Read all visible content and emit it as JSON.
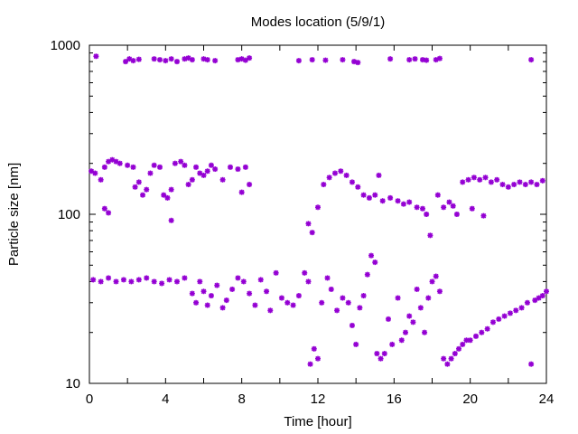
{
  "chart_data": {
    "type": "scatter",
    "title": "Modes location (5/9/1)",
    "xlabel": "Time [hour]",
    "ylabel": "Particle size [nm]",
    "xlim": [
      0,
      24
    ],
    "ylim": [
      10,
      1000
    ],
    "yscale": "log",
    "xticks": [
      "0",
      "4",
      "8",
      "12",
      "16",
      "20",
      "24"
    ],
    "yticks": [
      "10",
      "100",
      "1000"
    ],
    "grid": false,
    "marker_color": "#9400d3",
    "marker": "asterisk",
    "series": [
      {
        "points": [
          [
            0.35,
            860
          ],
          [
            1.9,
            800
          ],
          [
            2.1,
            830
          ],
          [
            2.3,
            810
          ],
          [
            2.6,
            825
          ],
          [
            3.4,
            830
          ],
          [
            3.7,
            820
          ],
          [
            4.0,
            810
          ],
          [
            4.3,
            830
          ],
          [
            4.6,
            800
          ],
          [
            5.0,
            830
          ],
          [
            5.2,
            840
          ],
          [
            5.4,
            820
          ],
          [
            6.0,
            830
          ],
          [
            6.2,
            820
          ],
          [
            6.6,
            810
          ],
          [
            7.8,
            820
          ],
          [
            8.0,
            830
          ],
          [
            8.2,
            815
          ],
          [
            8.4,
            840
          ],
          [
            11.0,
            810
          ],
          [
            11.7,
            820
          ],
          [
            12.4,
            815
          ],
          [
            13.3,
            820
          ],
          [
            13.9,
            800
          ],
          [
            14.1,
            790
          ],
          [
            15.8,
            830
          ],
          [
            16.8,
            820
          ],
          [
            17.1,
            830
          ],
          [
            17.5,
            820
          ],
          [
            17.7,
            815
          ],
          [
            18.2,
            820
          ],
          [
            18.4,
            835
          ],
          [
            23.2,
            820
          ],
          [
            0.1,
            180
          ],
          [
            0.3,
            175
          ],
          [
            0.6,
            160
          ],
          [
            0.8,
            190
          ],
          [
            1.0,
            205
          ],
          [
            1.2,
            210
          ],
          [
            1.4,
            205
          ],
          [
            1.6,
            200
          ],
          [
            2.0,
            195
          ],
          [
            2.3,
            190
          ],
          [
            2.4,
            145
          ],
          [
            2.6,
            155
          ],
          [
            2.8,
            130
          ],
          [
            3.0,
            140
          ],
          [
            3.2,
            175
          ],
          [
            3.4,
            195
          ],
          [
            3.7,
            190
          ],
          [
            3.9,
            130
          ],
          [
            4.1,
            125
          ],
          [
            4.3,
            140
          ],
          [
            4.5,
            200
          ],
          [
            4.8,
            205
          ],
          [
            5.0,
            195
          ],
          [
            5.2,
            150
          ],
          [
            5.4,
            160
          ],
          [
            5.6,
            190
          ],
          [
            5.8,
            175
          ],
          [
            6.0,
            170
          ],
          [
            6.2,
            180
          ],
          [
            6.4,
            195
          ],
          [
            6.6,
            185
          ],
          [
            7.0,
            160
          ],
          [
            7.4,
            190
          ],
          [
            7.8,
            185
          ],
          [
            8.0,
            135
          ],
          [
            8.2,
            190
          ],
          [
            8.4,
            150
          ],
          [
            0.8,
            108
          ],
          [
            1.0,
            102
          ],
          [
            4.3,
            92
          ],
          [
            11.5,
            88
          ],
          [
            11.7,
            78
          ],
          [
            12.0,
            110
          ],
          [
            12.3,
            150
          ],
          [
            12.6,
            165
          ],
          [
            12.9,
            175
          ],
          [
            13.2,
            180
          ],
          [
            13.5,
            170
          ],
          [
            13.8,
            155
          ],
          [
            14.1,
            145
          ],
          [
            14.4,
            130
          ],
          [
            14.7,
            125
          ],
          [
            15.0,
            130
          ],
          [
            15.2,
            170
          ],
          [
            15.4,
            120
          ],
          [
            15.8,
            125
          ],
          [
            16.2,
            120
          ],
          [
            16.5,
            115
          ],
          [
            16.8,
            118
          ],
          [
            17.2,
            110
          ],
          [
            17.5,
            108
          ],
          [
            17.7,
            100
          ],
          [
            17.9,
            75
          ],
          [
            18.3,
            130
          ],
          [
            18.6,
            110
          ],
          [
            18.9,
            118
          ],
          [
            19.1,
            112
          ],
          [
            19.3,
            100
          ],
          [
            19.6,
            155
          ],
          [
            19.9,
            160
          ],
          [
            20.2,
            165
          ],
          [
            20.5,
            160
          ],
          [
            20.8,
            165
          ],
          [
            21.1,
            155
          ],
          [
            21.4,
            160
          ],
          [
            21.7,
            150
          ],
          [
            22.0,
            145
          ],
          [
            22.3,
            150
          ],
          [
            22.6,
            155
          ],
          [
            22.9,
            150
          ],
          [
            23.2,
            155
          ],
          [
            23.5,
            150
          ],
          [
            23.8,
            158
          ],
          [
            20.1,
            108
          ],
          [
            20.7,
            98
          ],
          [
            0.2,
            41
          ],
          [
            0.6,
            40
          ],
          [
            1.0,
            42
          ],
          [
            1.4,
            40
          ],
          [
            1.8,
            41
          ],
          [
            2.2,
            40
          ],
          [
            2.6,
            41
          ],
          [
            3.0,
            42
          ],
          [
            3.4,
            40
          ],
          [
            3.8,
            39
          ],
          [
            4.2,
            41
          ],
          [
            4.6,
            40
          ],
          [
            5.0,
            42
          ],
          [
            5.4,
            34
          ],
          [
            5.6,
            30
          ],
          [
            5.8,
            40
          ],
          [
            6.0,
            35
          ],
          [
            6.2,
            29
          ],
          [
            6.4,
            33
          ],
          [
            6.7,
            38
          ],
          [
            7.0,
            28
          ],
          [
            7.2,
            31
          ],
          [
            7.5,
            36
          ],
          [
            7.8,
            42
          ],
          [
            8.1,
            40
          ],
          [
            8.4,
            34
          ],
          [
            8.7,
            29
          ],
          [
            9.0,
            41
          ],
          [
            9.3,
            35
          ],
          [
            9.5,
            27
          ],
          [
            9.8,
            45
          ],
          [
            10.1,
            32
          ],
          [
            10.4,
            30
          ],
          [
            10.7,
            29
          ],
          [
            11.0,
            33
          ],
          [
            11.3,
            45
          ],
          [
            11.5,
            40
          ],
          [
            11.6,
            13
          ],
          [
            11.8,
            16
          ],
          [
            12.0,
            14
          ],
          [
            12.2,
            30
          ],
          [
            12.5,
            42
          ],
          [
            12.7,
            36
          ],
          [
            13.0,
            27
          ],
          [
            13.3,
            32
          ],
          [
            13.6,
            30
          ],
          [
            13.8,
            22
          ],
          [
            14.0,
            17
          ],
          [
            14.2,
            28
          ],
          [
            14.4,
            33
          ],
          [
            14.6,
            44
          ],
          [
            14.8,
            57
          ],
          [
            15.0,
            52
          ],
          [
            15.1,
            15
          ],
          [
            15.3,
            14
          ],
          [
            15.5,
            15
          ],
          [
            15.7,
            24
          ],
          [
            15.9,
            17
          ],
          [
            16.2,
            32
          ],
          [
            16.4,
            18
          ],
          [
            16.6,
            20
          ],
          [
            16.8,
            25
          ],
          [
            17.0,
            23
          ],
          [
            17.2,
            36
          ],
          [
            17.4,
            28
          ],
          [
            17.6,
            20
          ],
          [
            17.8,
            32
          ],
          [
            18.0,
            40
          ],
          [
            18.2,
            43
          ],
          [
            18.4,
            35
          ],
          [
            18.6,
            14
          ],
          [
            18.8,
            13
          ],
          [
            19.0,
            14
          ],
          [
            19.2,
            15
          ],
          [
            19.4,
            16
          ],
          [
            19.6,
            17
          ],
          [
            19.8,
            18
          ],
          [
            20.0,
            18
          ],
          [
            20.3,
            19
          ],
          [
            20.6,
            20
          ],
          [
            20.9,
            21
          ],
          [
            21.2,
            23
          ],
          [
            21.5,
            24
          ],
          [
            21.8,
            25
          ],
          [
            22.1,
            26
          ],
          [
            22.4,
            27
          ],
          [
            22.7,
            28
          ],
          [
            23.0,
            30
          ],
          [
            23.2,
            13
          ],
          [
            23.4,
            31
          ],
          [
            23.6,
            32
          ],
          [
            23.8,
            33
          ],
          [
            24.0,
            35
          ]
        ]
      }
    ]
  }
}
